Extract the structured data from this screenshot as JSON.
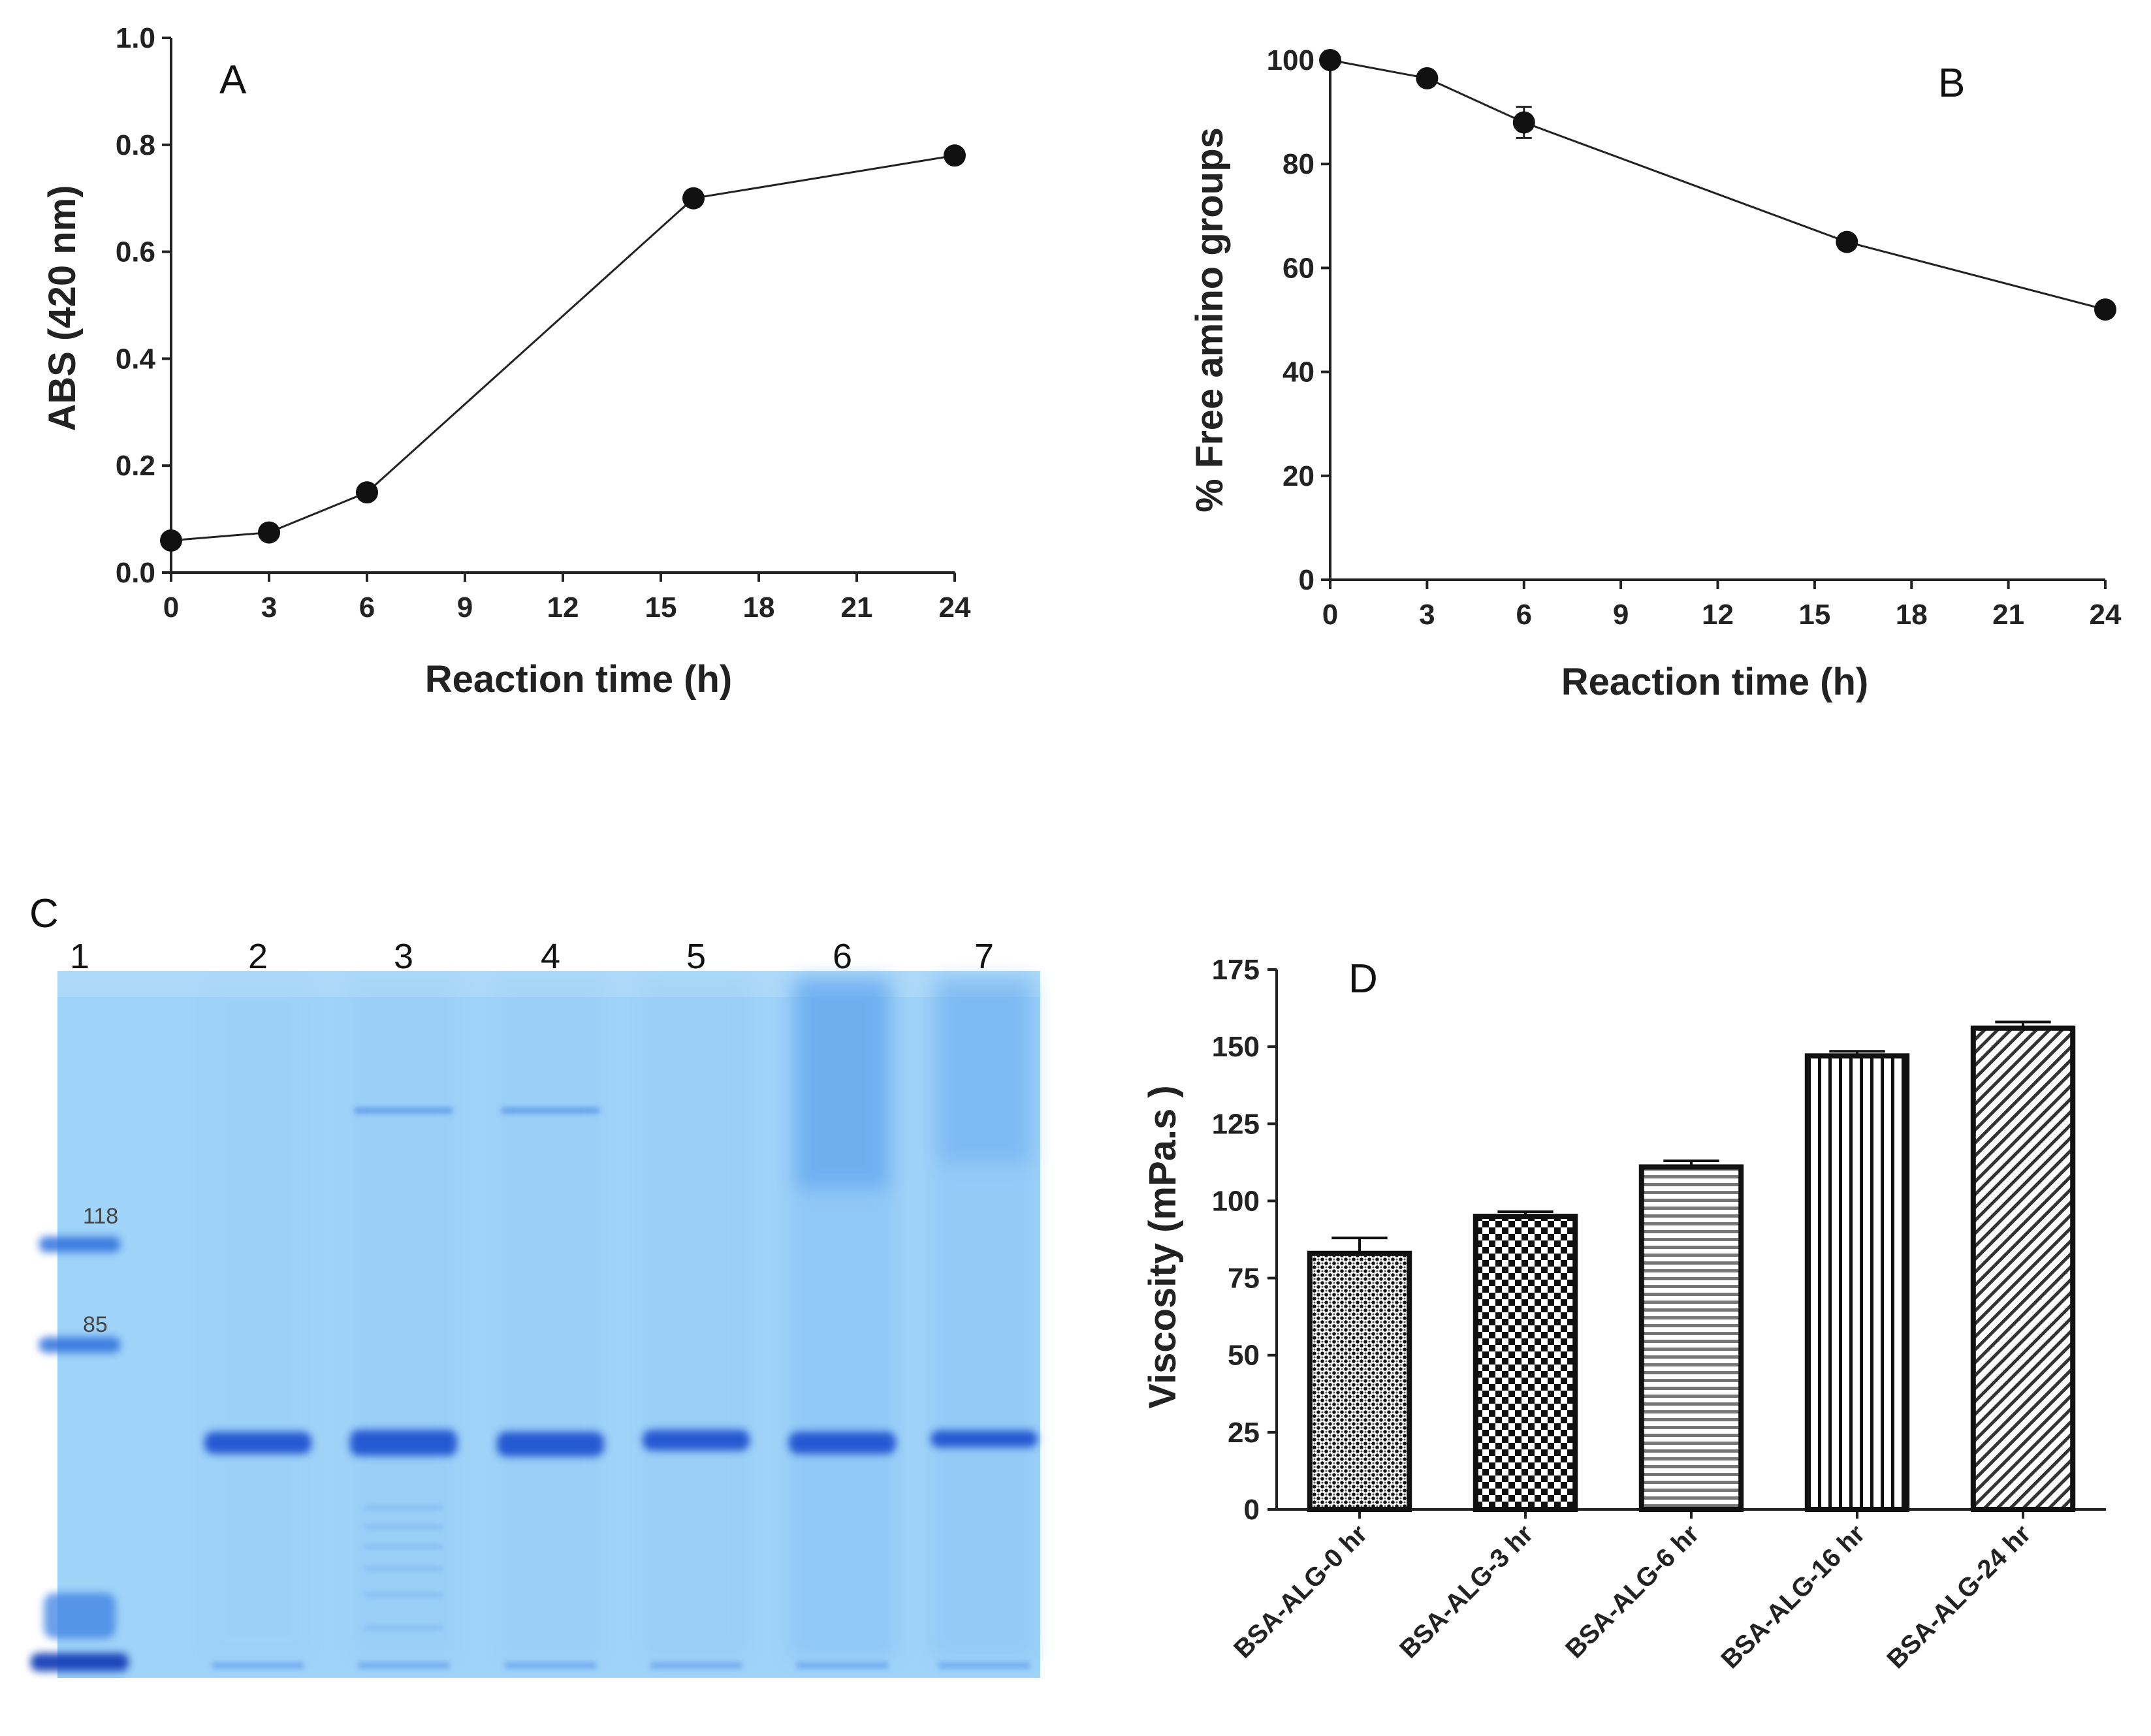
{
  "panels": {
    "A": {
      "letter": "A"
    },
    "B": {
      "letter": "B"
    },
    "C": {
      "letter": "C"
    },
    "D": {
      "letter": "D"
    }
  },
  "chart_data": [
    {
      "panel": "A",
      "type": "line",
      "xlabel": "Reaction time (h)",
      "ylabel": "ABS (420 nm)",
      "xlim": [
        0,
        24
      ],
      "ylim": [
        0,
        1.0
      ],
      "xticks": [
        "0",
        "3",
        "6",
        "9",
        "12",
        "15",
        "18",
        "21",
        "24"
      ],
      "yticks": [
        "0.0",
        "0.2",
        "0.4",
        "0.6",
        "0.8",
        "1.0"
      ],
      "x": [
        0,
        3,
        6,
        16,
        24
      ],
      "y": [
        0.06,
        0.075,
        0.15,
        0.7,
        0.78
      ],
      "grid": false
    },
    {
      "panel": "B",
      "type": "line",
      "xlabel": "Reaction time (h)",
      "ylabel": "% Free amino groups",
      "xlim": [
        0,
        24
      ],
      "ylim": [
        0,
        100
      ],
      "xticks": [
        "0",
        "3",
        "6",
        "9",
        "12",
        "15",
        "18",
        "21",
        "24"
      ],
      "yticks": [
        "0",
        "20",
        "40",
        "60",
        "80",
        "100"
      ],
      "x": [
        0,
        3,
        6,
        16,
        24
      ],
      "y": [
        100,
        96.5,
        88,
        65,
        52
      ],
      "err": [
        0.5,
        1,
        3,
        1,
        1
      ],
      "grid": false
    },
    {
      "panel": "D",
      "type": "bar",
      "xlabel": "",
      "ylabel": "Viscosity (mPa.s )",
      "ylim": [
        0,
        175
      ],
      "yticks": [
        "0",
        "25",
        "50",
        "75",
        "100",
        "125",
        "150",
        "175"
      ],
      "categories": [
        "BSA-ALG-0 hr",
        "BSA-ALG-3 hr",
        "BSA-ALG-6 hr",
        "BSA-ALG-16 hr",
        "BSA-ALG-24 hr"
      ],
      "values": [
        83,
        95,
        111,
        147,
        156
      ],
      "err": [
        5,
        1.5,
        2,
        1.5,
        2
      ],
      "patterns": [
        "dots",
        "checker",
        "horizontal",
        "vertical",
        "diagonal"
      ],
      "grid": false
    }
  ],
  "gel": {
    "panel": "C",
    "lanes": [
      "1",
      "2",
      "3",
      "4",
      "5",
      "6",
      "7"
    ],
    "markers": [
      "118",
      "85"
    ],
    "background_color": "#9fd3f8",
    "band_color": "#1a4fcf"
  }
}
